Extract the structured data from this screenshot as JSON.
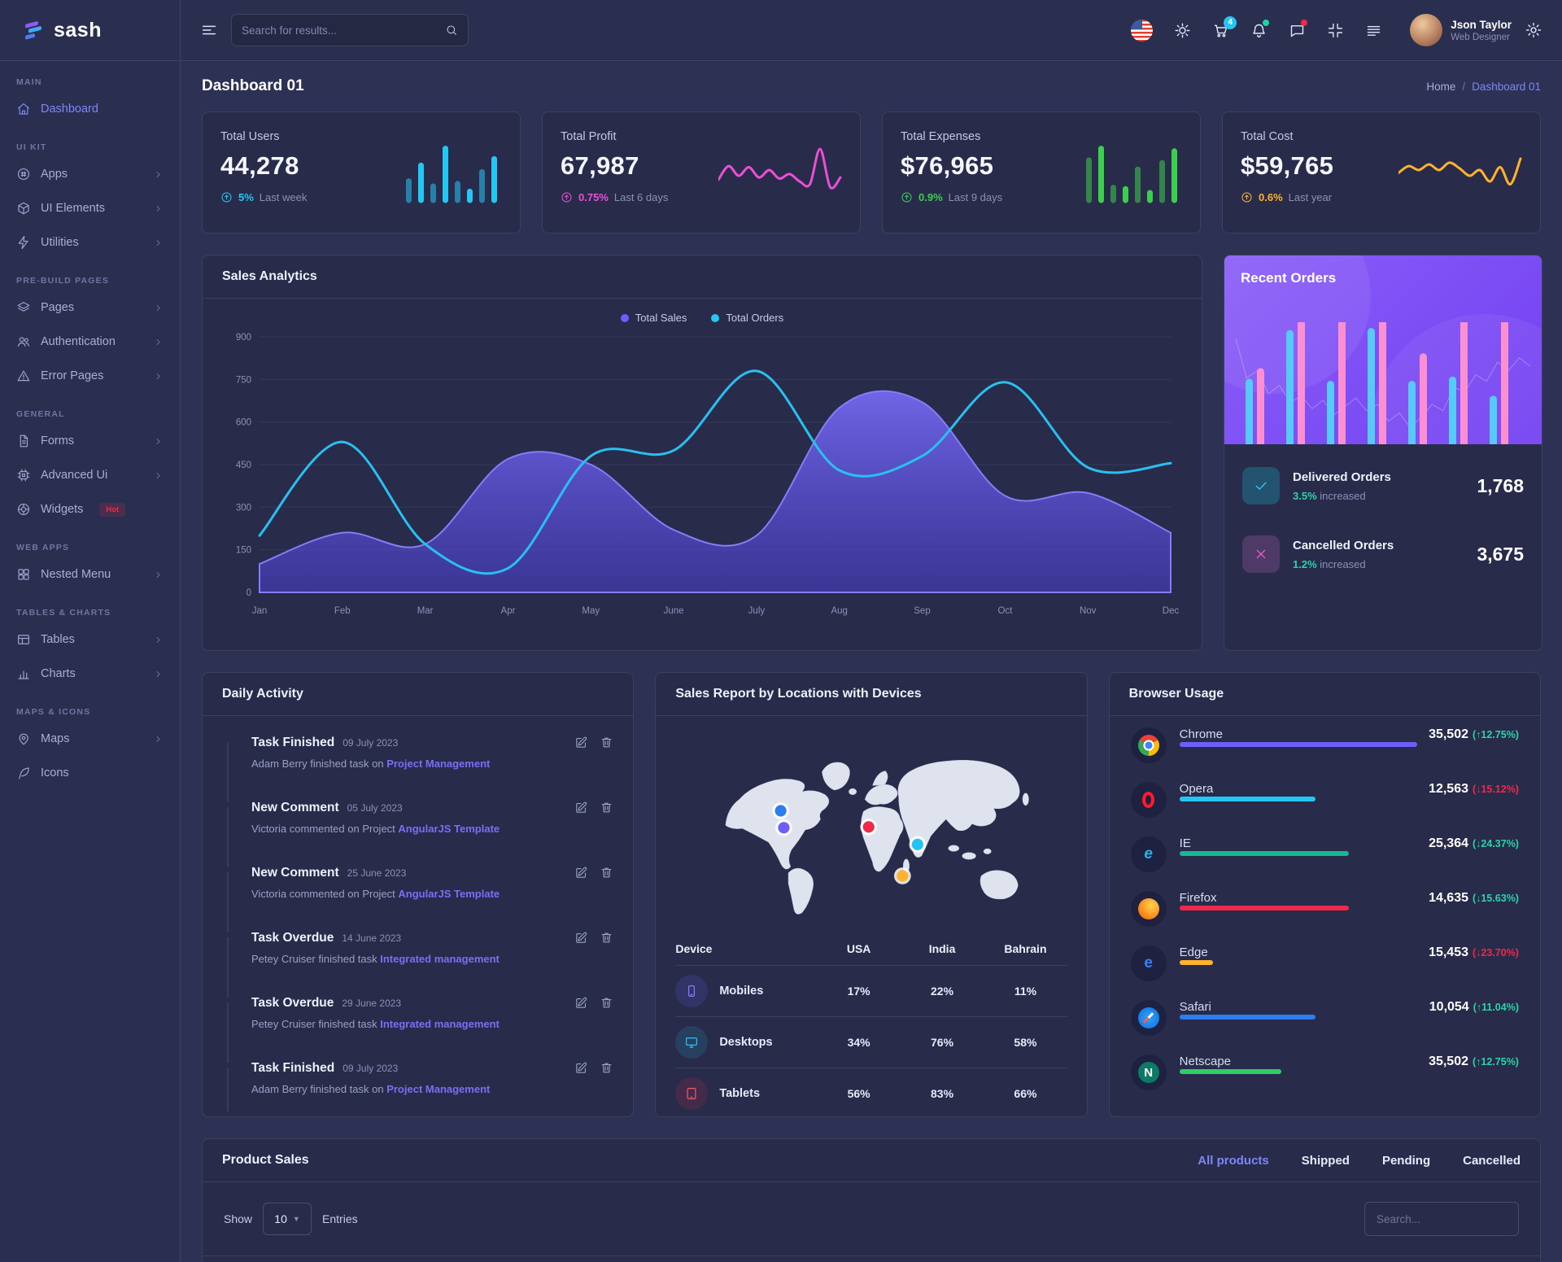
{
  "brand": {
    "name": "sash"
  },
  "header": {
    "search_placeholder": "Search for results...",
    "cart_badge": "4",
    "user": {
      "name": "Json Taylor",
      "role": "Web Designer"
    }
  },
  "page": {
    "title": "Dashboard 01",
    "breadcrumb": [
      "Home",
      "Dashboard 01"
    ]
  },
  "sidebar": {
    "sections": [
      {
        "label": "MAIN",
        "items": [
          {
            "label": "Dashboard",
            "icon": "home",
            "active": true,
            "chevron": false
          }
        ]
      },
      {
        "label": "UI KIT",
        "items": [
          {
            "label": "Apps",
            "icon": "apps",
            "chevron": true
          },
          {
            "label": "UI Elements",
            "icon": "box",
            "chevron": true
          },
          {
            "label": "Utilities",
            "icon": "zap",
            "chevron": true
          }
        ]
      },
      {
        "label": "PRE-BUILD PAGES",
        "items": [
          {
            "label": "Pages",
            "icon": "layers",
            "chevron": true
          },
          {
            "label": "Authentication",
            "icon": "users",
            "chevron": true
          },
          {
            "label": "Error Pages",
            "icon": "alert",
            "chevron": true
          }
        ]
      },
      {
        "label": "GENERAL",
        "items": [
          {
            "label": "Forms",
            "icon": "file",
            "chevron": true
          },
          {
            "label": "Advanced Ui",
            "icon": "cpu",
            "chevron": true
          },
          {
            "label": "Widgets",
            "icon": "wheel",
            "chevron": false,
            "badge": "Hot"
          }
        ]
      },
      {
        "label": "WEB APPS",
        "items": [
          {
            "label": "Nested Menu",
            "icon": "grid",
            "chevron": true
          }
        ]
      },
      {
        "label": "TABLES & CHARTS",
        "items": [
          {
            "label": "Tables",
            "icon": "table",
            "chevron": true
          },
          {
            "label": "Charts",
            "icon": "chart",
            "chevron": true
          }
        ]
      },
      {
        "label": "MAPS & ICONS",
        "items": [
          {
            "label": "Maps",
            "icon": "pin",
            "chevron": true
          },
          {
            "label": "Icons",
            "icon": "feather",
            "chevron": false
          }
        ]
      }
    ]
  },
  "stats": [
    {
      "label": "Total Users",
      "value": "44,278",
      "delta": "5%",
      "period": "Last week",
      "color": "#24c6f4",
      "spark": "bars",
      "points": [
        38,
        62,
        30,
        88,
        34,
        22,
        52,
        72
      ]
    },
    {
      "label": "Total Profit",
      "value": "67,987",
      "delta": "0.75%",
      "period": "Last 6 days",
      "color": "#ec4ed8",
      "spark": "line",
      "points": [
        38,
        62,
        45,
        60,
        42,
        55,
        40,
        48,
        35,
        30,
        92,
        25,
        42
      ]
    },
    {
      "label": "Total Expenses",
      "value": "$76,965",
      "delta": "0.9%",
      "period": "Last 9 days",
      "color": "#3ccf4e",
      "spark": "bars",
      "points": [
        70,
        88,
        28,
        26,
        56,
        20,
        66,
        84
      ]
    },
    {
      "label": "Total Cost",
      "value": "$59,765",
      "delta": "0.6%",
      "period": "Last year",
      "color": "#ffb22b",
      "spark": "line",
      "points": [
        50,
        62,
        55,
        65,
        55,
        68,
        58,
        45,
        55,
        35,
        60,
        30,
        75
      ]
    }
  ],
  "sales_analytics": {
    "title": "Sales Analytics",
    "chart_data": {
      "type": "area+line",
      "categories": [
        "Jan",
        "Feb",
        "Mar",
        "Apr",
        "May",
        "June",
        "July",
        "Aug",
        "Sep",
        "Oct",
        "Nov",
        "Dec"
      ],
      "series": [
        {
          "name": "Total Sales",
          "kind": "area",
          "color": "#6c5ffc",
          "values": [
            100,
            210,
            170,
            470,
            450,
            220,
            200,
            650,
            670,
            340,
            350,
            210
          ]
        },
        {
          "name": "Total Orders",
          "kind": "line",
          "color": "#29c0f0",
          "values": [
            200,
            530,
            170,
            85,
            480,
            500,
            780,
            430,
            480,
            740,
            440,
            455
          ]
        }
      ],
      "ylim": [
        0,
        900
      ],
      "yticks": [
        0,
        150,
        300,
        450,
        600,
        750,
        900
      ],
      "grid": true,
      "legend_position": "top"
    }
  },
  "recent_orders": {
    "title": "Recent Orders",
    "chart": {
      "cyan_bars": [
        31,
        54,
        30,
        55,
        30,
        32,
        23
      ],
      "pink_bars": [
        36,
        63,
        75,
        72,
        43,
        75,
        63
      ],
      "bar_colors": {
        "cyan": "#56caf8",
        "pink": "#fc8fd2"
      },
      "bg_line": [
        92,
        55,
        62,
        40,
        48,
        32,
        38,
        26,
        34,
        20,
        28,
        36,
        24,
        30,
        14,
        22,
        8,
        18,
        30,
        24,
        46,
        42,
        58,
        52,
        70,
        62,
        74,
        66
      ]
    },
    "rows": [
      {
        "icon": "check",
        "title": "Delivered Orders",
        "delta": "3.5%",
        "suffix": "increased",
        "value": "1,768"
      },
      {
        "icon": "cross",
        "title": "Cancelled Orders",
        "delta": "1.2%",
        "suffix": "increased",
        "value": "3,675"
      }
    ]
  },
  "daily_activity": {
    "title": "Daily Activity",
    "items": [
      {
        "color": "#6c5ffc",
        "title": "Task Finished",
        "date": "09 July 2023",
        "text": "Adam Berry finished task on ",
        "link": "Project Management"
      },
      {
        "color": "#24c6f4",
        "title": "New Comment",
        "date": "05 July 2023",
        "text": "Victoria commented on Project ",
        "link": "AngularJS Template"
      },
      {
        "color": "#1dd3a7",
        "title": "New Comment",
        "date": "25 June 2023",
        "text": "Victoria commented on Project ",
        "link": "AngularJS Template"
      },
      {
        "color": "#ffb22b",
        "title": "Task Overdue",
        "date": "14 June 2023",
        "text": "Petey Cruiser finished task ",
        "link": "Integrated management"
      },
      {
        "color": "#f0284a",
        "title": "Task Overdue",
        "date": "29 June 2023",
        "text": "Petey Cruiser finished task ",
        "link": "Integrated management"
      },
      {
        "color": "#2b7df0",
        "title": "Task Finished",
        "date": "09 July 2023",
        "text": "Adam Berry finished task on ",
        "link": "Project Management"
      }
    ]
  },
  "sales_report": {
    "title": "Sales Report by Locations with Devices",
    "columns": [
      "Device",
      "USA",
      "India",
      "Bahrain"
    ],
    "rows": [
      {
        "device": "Mobiles",
        "icon": "mobile",
        "usa": "17%",
        "india": "22%",
        "bahrain": "11%"
      },
      {
        "device": "Desktops",
        "icon": "desktop",
        "usa": "34%",
        "india": "76%",
        "bahrain": "58%"
      },
      {
        "device": "Tablets",
        "icon": "tablet",
        "usa": "56%",
        "india": "83%",
        "bahrain": "66%"
      }
    ],
    "map_markers": [
      {
        "color": "#2b7df0",
        "x": 27.3,
        "y": 42.7
      },
      {
        "color": "#6c5ffc",
        "x": 28.1,
        "y": 51.2
      },
      {
        "color": "#f0284a",
        "x": 49.4,
        "y": 50.8
      },
      {
        "color": "#22c3f7",
        "x": 61.7,
        "y": 59.6
      },
      {
        "color": "#ffb22b",
        "x": 57.9,
        "y": 75.4
      }
    ]
  },
  "browser_usage": {
    "title": "Browser Usage",
    "rows": [
      {
        "name": "Chrome",
        "value": "35,502",
        "arrow": "up",
        "change": "12.75%",
        "trend": "up",
        "bar_color": "#6c5ffc",
        "bar_pct": 70
      },
      {
        "name": "Opera",
        "value": "12,563",
        "arrow": "down",
        "change": "15.12%",
        "trend": "down",
        "bar_color": "#24c6f4",
        "bar_pct": 40
      },
      {
        "name": "IE",
        "value": "25,364",
        "arrow": "down",
        "change": "24.37%",
        "trend": "up",
        "bar_color": "#19b597",
        "bar_pct": 50
      },
      {
        "name": "Firefox",
        "value": "14,635",
        "arrow": "down",
        "change": "15.63%",
        "trend": "up",
        "bar_color": "#f0284a",
        "bar_pct": 50
      },
      {
        "name": "Edge",
        "value": "15,453",
        "arrow": "down",
        "change": "23.70%",
        "trend": "down",
        "bar_color": "#ffb22b",
        "bar_pct": 10
      },
      {
        "name": "Safari",
        "value": "10,054",
        "arrow": "up",
        "change": "11.04%",
        "trend": "up",
        "bar_color": "#2b7df0",
        "bar_pct": 40
      },
      {
        "name": "Netscape",
        "value": "35,502",
        "arrow": "up",
        "change": "12.75%",
        "trend": "up",
        "bar_color": "#2dce66",
        "bar_pct": 30
      }
    ]
  },
  "product_sales": {
    "title": "Product Sales",
    "tabs": [
      {
        "label": "All products",
        "active": true
      },
      {
        "label": "Shipped",
        "active": false
      },
      {
        "label": "Pending",
        "active": false
      },
      {
        "label": "Cancelled",
        "active": false
      }
    ],
    "show_label": "Show",
    "entries_value": "10",
    "entries_label": "Entries",
    "search_placeholder": "Search..."
  }
}
